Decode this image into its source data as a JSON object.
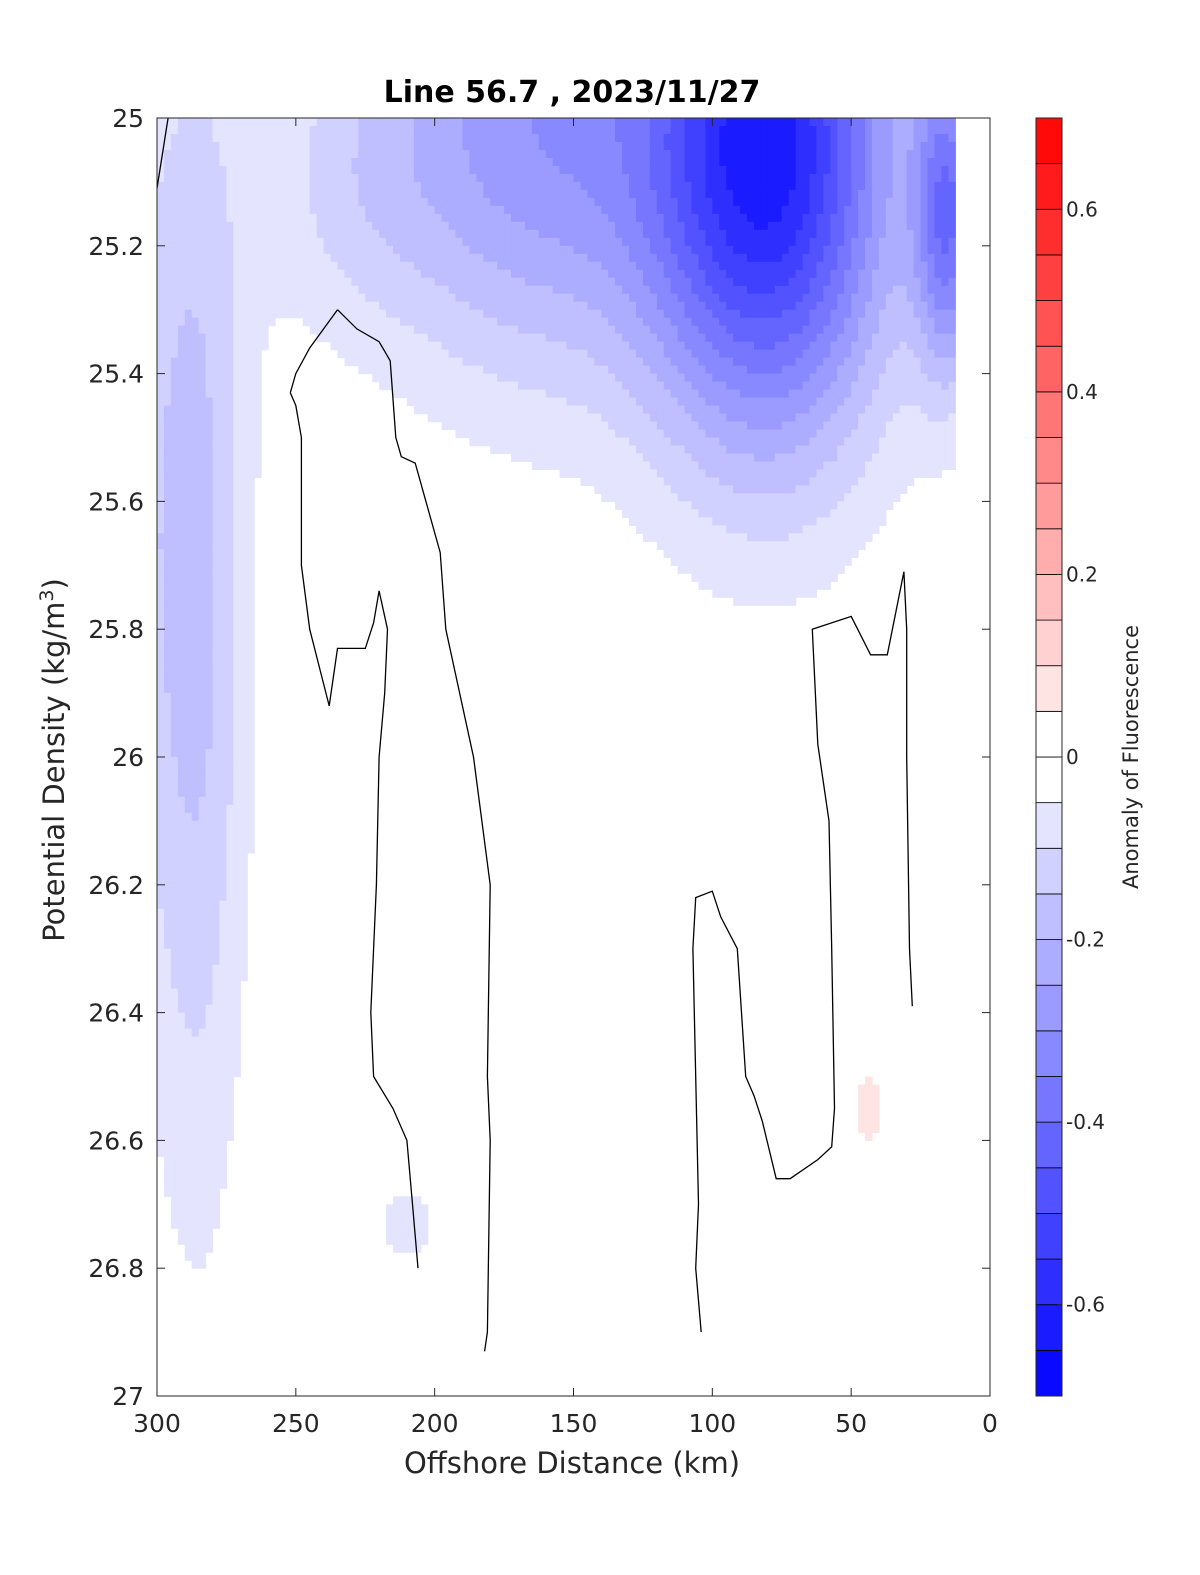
{
  "chart_data": {
    "type": "heatmap",
    "subtype": "filled-contour",
    "title": "Line 56.7 , 2023/11/27",
    "xlabel": "Offshore Distance (km)",
    "ylabel_main": "Potential Density (kg/m",
    "ylabel_sup": "3",
    "ylabel_close": ")",
    "xlim": [
      300,
      0
    ],
    "x_reversed": true,
    "ylim": [
      25,
      27
    ],
    "y_reversed": true,
    "x_ticks": [
      "300",
      "250",
      "200",
      "150",
      "100",
      "50",
      "0"
    ],
    "y_ticks": [
      "25",
      "25.2",
      "25.4",
      "25.6",
      "25.8",
      "26",
      "26.2",
      "26.4",
      "26.6",
      "26.8",
      "27"
    ],
    "colorbar": {
      "label": "Anomaly of Fluorescence",
      "range": [
        -0.7,
        0.7
      ],
      "level_step": 0.05,
      "ticks": [
        "-0.6",
        "-0.4",
        "-0.2",
        "0",
        "0.2",
        "0.4",
        "0.6"
      ],
      "colormap": "blue-white-red"
    },
    "colors": {
      "negative_max": "#0000ff",
      "positive_max": "#ff0000",
      "zero": "#ffffff",
      "contour_line": "#000000"
    },
    "fields": [
      {
        "description": "surface minimum",
        "x": 80,
        "y": 25.05,
        "value": -0.62
      },
      {
        "description": "nearshore surface",
        "x": 15,
        "y": 25.2,
        "value": -0.55
      },
      {
        "description": "offshore surface",
        "x": 160,
        "y": 25.05,
        "value": -0.3
      },
      {
        "description": "western flank",
        "x": 285,
        "y": 25.7,
        "value": -0.1
      },
      {
        "description": "red patch",
        "x": 44,
        "y": 26.55,
        "value": 0.05
      }
    ],
    "contour_lines": [
      {
        "level": 0,
        "points": [
          [
            300,
            25.11
          ],
          [
            296,
            25.0
          ]
        ]
      },
      {
        "level": 0,
        "points": [
          [
            235,
            25.3
          ],
          [
            228,
            25.33
          ],
          [
            220,
            25.35
          ],
          [
            216,
            25.38
          ],
          [
            214,
            25.5
          ],
          [
            212,
            25.53
          ],
          [
            207,
            25.54
          ],
          [
            198,
            25.68
          ],
          [
            196,
            25.8
          ],
          [
            186,
            26.0
          ],
          [
            180,
            26.2
          ],
          [
            181,
            26.5
          ],
          [
            180,
            26.6
          ],
          [
            181,
            26.9
          ],
          [
            182,
            26.93
          ]
        ]
      },
      {
        "level": 0,
        "points": [
          [
            252,
            25.43
          ],
          [
            250,
            25.45
          ],
          [
            248,
            25.5
          ],
          [
            248,
            25.7
          ],
          [
            245,
            25.8
          ],
          [
            238,
            25.92
          ],
          [
            235,
            25.83
          ],
          [
            225,
            25.83
          ],
          [
            222,
            25.79
          ],
          [
            220,
            25.74
          ],
          [
            217,
            25.8
          ],
          [
            218,
            25.9
          ],
          [
            220,
            26.0
          ],
          [
            221,
            26.2
          ],
          [
            223,
            26.4
          ],
          [
            222,
            26.5
          ],
          [
            215,
            26.55
          ],
          [
            210,
            26.6
          ],
          [
            208,
            26.7
          ],
          [
            206,
            26.8
          ]
        ]
      },
      {
        "level": 0,
        "points": [
          [
            252,
            25.43
          ],
          [
            250,
            25.4
          ],
          [
            245,
            25.36
          ],
          [
            240,
            25.33
          ],
          [
            235,
            25.3
          ]
        ]
      },
      {
        "level": 0,
        "points": [
          [
            104,
            26.9
          ],
          [
            106,
            26.8
          ],
          [
            105,
            26.7
          ],
          [
            107,
            26.3
          ],
          [
            106,
            26.22
          ],
          [
            100,
            26.21
          ],
          [
            97,
            26.25
          ],
          [
            91,
            26.3
          ],
          [
            88,
            26.5
          ],
          [
            85,
            26.53
          ],
          [
            82,
            26.57
          ],
          [
            77,
            26.66
          ],
          [
            72,
            26.66
          ],
          [
            62,
            26.63
          ],
          [
            57,
            26.61
          ],
          [
            56,
            26.55
          ],
          [
            57,
            26.3
          ],
          [
            58,
            26.1
          ],
          [
            62,
            25.98
          ],
          [
            64,
            25.8
          ],
          [
            50,
            25.78
          ],
          [
            43,
            25.84
          ],
          [
            37,
            25.84
          ],
          [
            31,
            25.71
          ],
          [
            30,
            25.8
          ],
          [
            30,
            26.0
          ],
          [
            29,
            26.3
          ],
          [
            28,
            26.39
          ]
        ]
      }
    ]
  }
}
